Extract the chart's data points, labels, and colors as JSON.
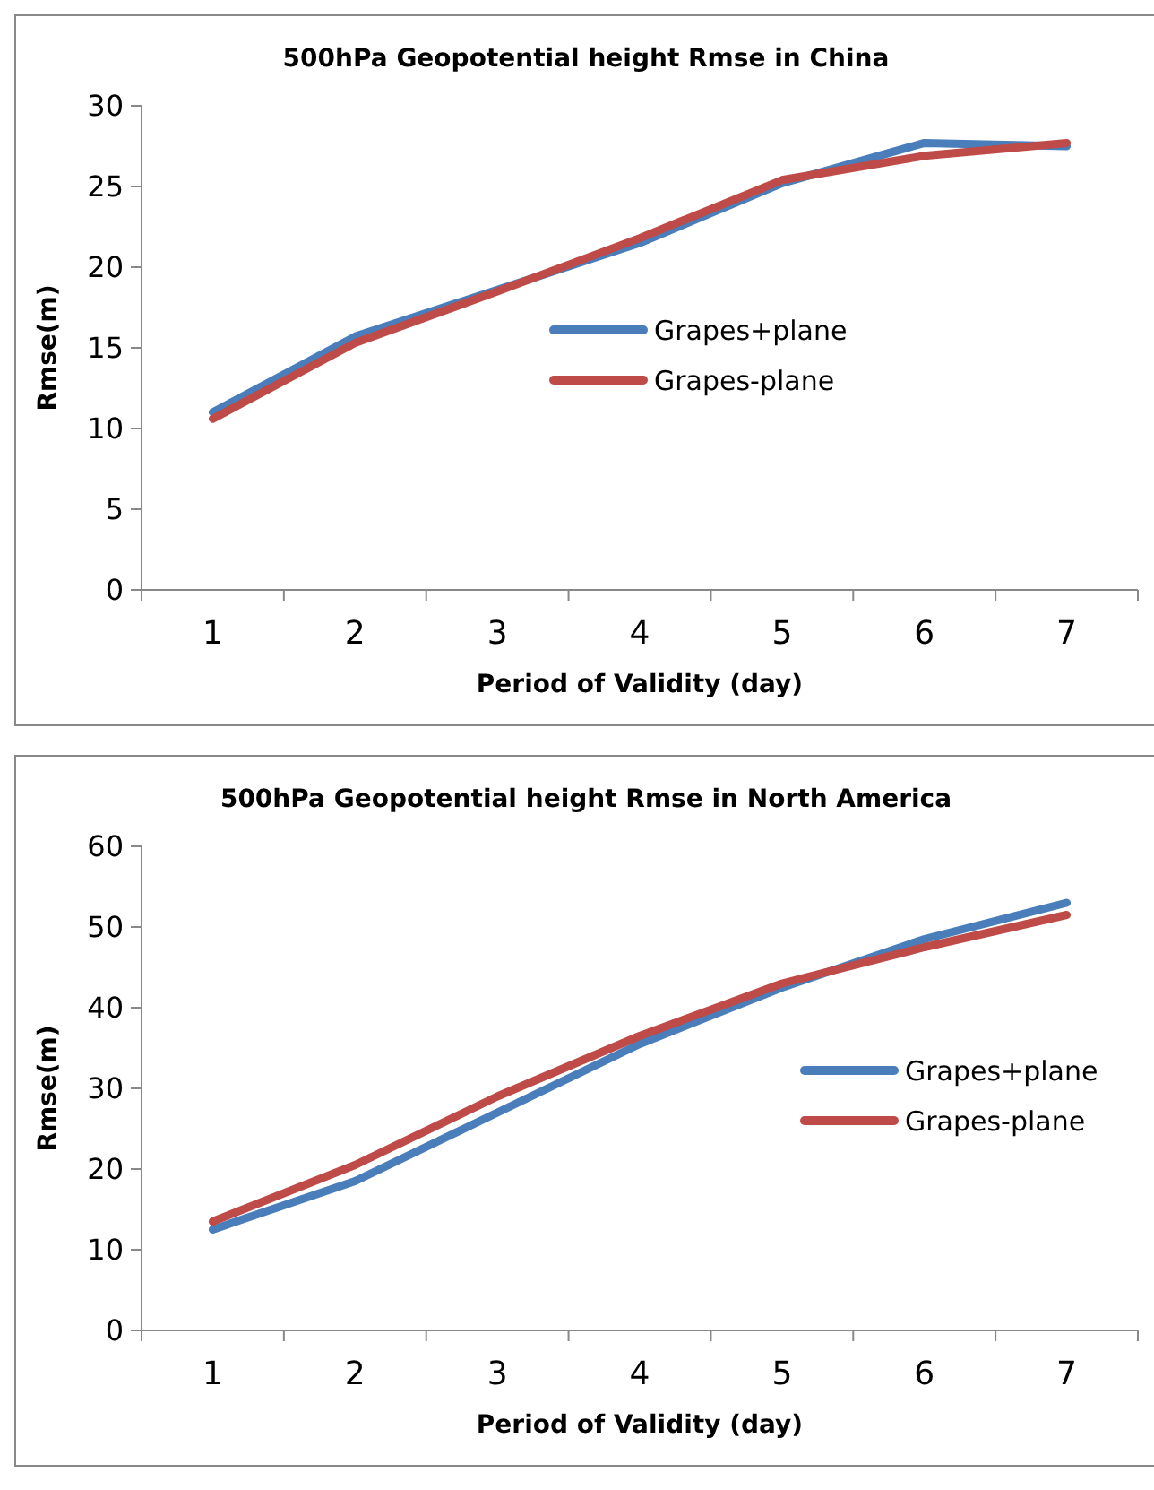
{
  "chart_data": [
    {
      "type": "line",
      "title": "500hPa Geopotential height Rmse in China",
      "xlabel": "Period of Validity (day)",
      "ylabel": "Rmse(m)",
      "categories": [
        "1",
        "2",
        "3",
        "4",
        "5",
        "6",
        "7"
      ],
      "ylim": [
        0,
        30
      ],
      "yticks": [
        0,
        5,
        10,
        15,
        20,
        25,
        30
      ],
      "grid": false,
      "legend": "center",
      "marker": "none",
      "line_style": "solid",
      "series": [
        {
          "name": "Grapes+plane",
          "color": "#4a7ebb",
          "values": [
            11,
            15.7,
            18.6,
            21.5,
            25.2,
            27.7,
            27.5
          ]
        },
        {
          "name": "Grapes-plane",
          "color": "#be4b48",
          "values": [
            10.6,
            15.3,
            18.5,
            21.8,
            25.4,
            26.9,
            27.7
          ]
        }
      ]
    },
    {
      "type": "line",
      "title": "500hPa Geopotential height Rmse in North America",
      "xlabel": "Period of Validity (day)",
      "ylabel": "Rmse(m)",
      "categories": [
        "1",
        "2",
        "3",
        "4",
        "5",
        "6",
        "7"
      ],
      "ylim": [
        0,
        60
      ],
      "yticks": [
        0,
        10,
        20,
        30,
        40,
        50,
        60
      ],
      "grid": false,
      "legend": "right",
      "marker": "none",
      "line_style": "solid",
      "series": [
        {
          "name": "Grapes+plane",
          "color": "#4a7ebb",
          "values": [
            12.5,
            18.5,
            27,
            35.5,
            42.5,
            48.5,
            53
          ]
        },
        {
          "name": "Grapes-plane",
          "color": "#be4b48",
          "values": [
            13.5,
            20.5,
            29,
            36.5,
            43,
            47.5,
            51.5
          ]
        }
      ]
    }
  ]
}
